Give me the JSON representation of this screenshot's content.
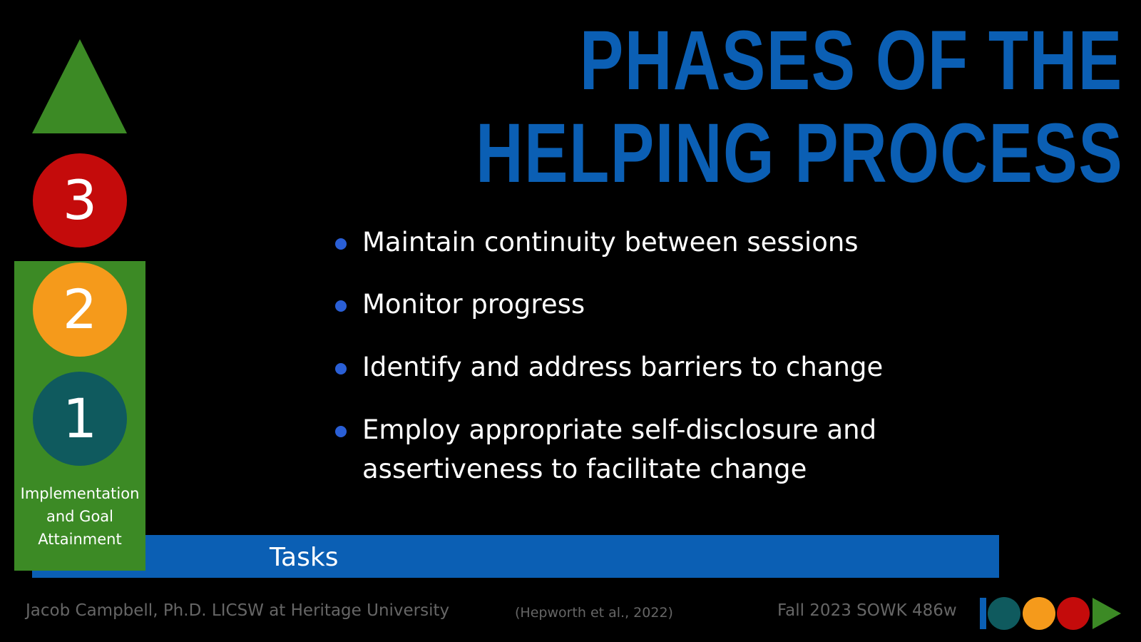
{
  "header": {
    "title_line1": "PHASES OF THE",
    "title_line2": "HELPING PROCESS"
  },
  "sidebar": {
    "circles": [
      "3",
      "2",
      "1"
    ],
    "label": "Implementation and Goal Attainment"
  },
  "bullets": [
    "Maintain continuity between sessions",
    "Monitor progress",
    "Identify and address barriers to change",
    "Employ appropriate self-disclosure and assertiveness to facilitate change"
  ],
  "bar": {
    "label": "Tasks"
  },
  "footer": {
    "author": "Jacob Campbell, Ph.D. LICSW at Heritage University",
    "citation": "(Hepworth et al., 2022)",
    "course": "Fall 2023 SOWK 486w"
  }
}
